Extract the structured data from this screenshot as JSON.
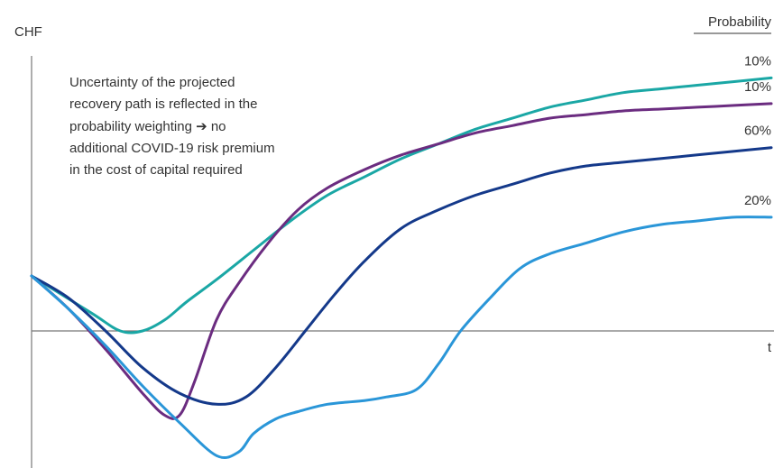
{
  "chart_data": {
    "type": "line",
    "ylabel": "CHF",
    "xlabel": "t",
    "legend_title": "Probability",
    "annotation_lines": [
      "Uncertainty of the projected",
      "recovery path is reflected in the",
      "probability weighting ➔ no",
      "additional COVID-19 risk premium",
      "in the cost of capital required"
    ],
    "xlim": [
      0,
      100
    ],
    "ylim": [
      -45,
      80
    ],
    "series": [
      {
        "name": "10%",
        "color": "#1aa7a5",
        "x": [
          0,
          8,
          12,
          15,
          18,
          21,
          25,
          30,
          35,
          40,
          45,
          50,
          55,
          60,
          65,
          70,
          75,
          80,
          85,
          90,
          95,
          100
        ],
        "y": [
          15,
          5,
          0,
          0,
          3,
          8,
          14,
          22,
          30,
          37,
          42,
          47,
          51,
          55,
          58,
          61,
          63,
          65,
          66,
          67,
          68,
          69
        ]
      },
      {
        "name": "10%",
        "color": "#6b2c80",
        "x": [
          0,
          5,
          10,
          15,
          18,
          20,
          22,
          25,
          28,
          32,
          36,
          40,
          45,
          50,
          55,
          60,
          65,
          70,
          75,
          80,
          85,
          90,
          95,
          100
        ],
        "y": [
          15,
          6,
          -5,
          -17,
          -23,
          -23,
          -14,
          3,
          13,
          24,
          33,
          39,
          44,
          48,
          51,
          54,
          56,
          58,
          59,
          60,
          60.5,
          61,
          61.5,
          62
        ]
      },
      {
        "name": "60%",
        "color": "#14398a",
        "x": [
          0,
          5,
          10,
          15,
          20,
          25,
          29,
          33,
          37,
          41,
          45,
          50,
          55,
          60,
          65,
          70,
          75,
          80,
          85,
          90,
          95,
          100
        ],
        "y": [
          15,
          9,
          0,
          -10,
          -17,
          -20,
          -18,
          -10,
          0,
          10,
          19,
          28,
          33,
          37,
          40,
          43,
          45,
          46,
          47,
          48,
          49,
          50
        ]
      },
      {
        "name": "20%",
        "color": "#2a96d8",
        "x": [
          0,
          5,
          10,
          15,
          20,
          25,
          28,
          30,
          33,
          36,
          40,
          45,
          48,
          52,
          55,
          58,
          62,
          66,
          70,
          75,
          80,
          85,
          90,
          95,
          100
        ],
        "y": [
          15,
          6,
          -4,
          -15,
          -25,
          -34,
          -33,
          -28,
          -24,
          -22,
          -20,
          -19,
          -18,
          -16,
          -9,
          0,
          9,
          17,
          21,
          24,
          27,
          29,
          30,
          31,
          31
        ]
      }
    ]
  }
}
